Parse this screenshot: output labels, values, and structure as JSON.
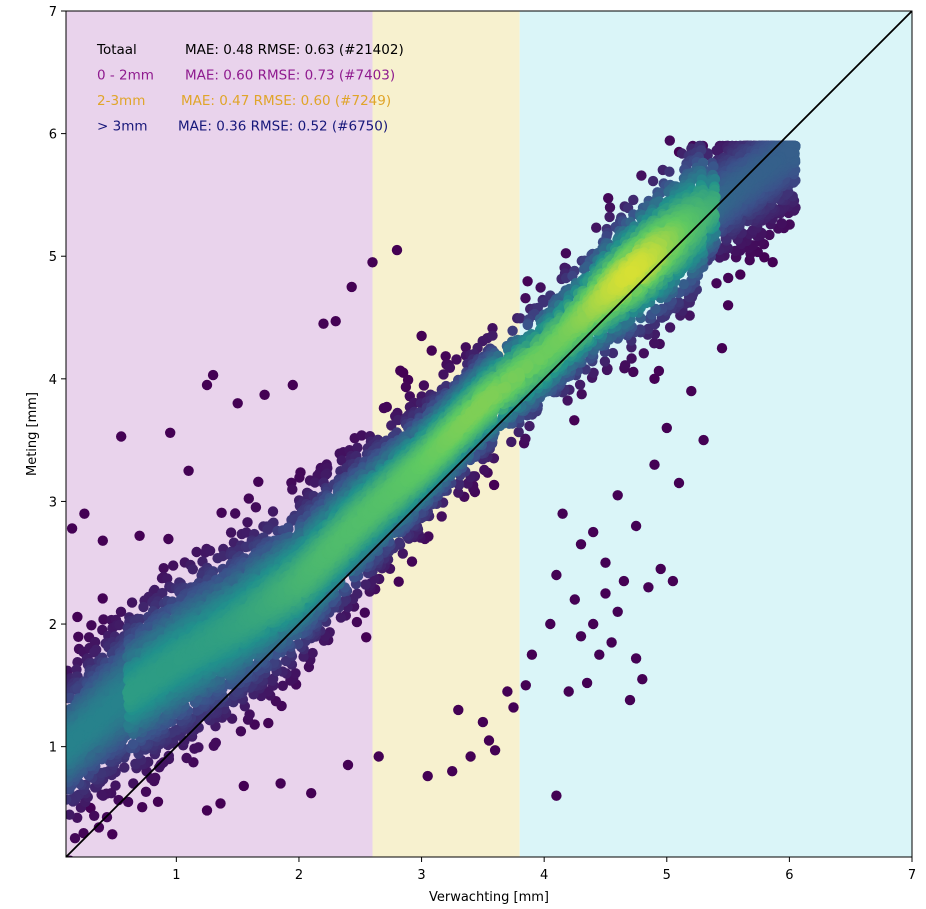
{
  "chart_data": {
    "type": "scatter",
    "title": "",
    "xlabel": "Verwachting [mm]",
    "ylabel": "Meting [mm]",
    "xlim": [
      0.1,
      7
    ],
    "ylim": [
      0.1,
      7
    ],
    "x_ticks": [
      1,
      2,
      3,
      4,
      5,
      6,
      7
    ],
    "y_ticks": [
      1,
      2,
      3,
      4,
      5,
      6,
      7
    ],
    "grid": false,
    "colormap": "viridis",
    "regions": [
      {
        "from": 0.1,
        "to": 2.6,
        "color": "#e9d3ec"
      },
      {
        "from": 2.6,
        "to": 3.8,
        "color": "#f7f1cf"
      },
      {
        "from": 3.8,
        "to": 7.0,
        "color": "#daf5f8"
      }
    ],
    "reference_line": {
      "from": [
        0.1,
        0.1
      ],
      "to": [
        7,
        7
      ],
      "color": "#000000"
    },
    "stats": [
      {
        "group": "Totaal",
        "metrics": "MAE:  0.48 RMSE:  0.63 (#21402)",
        "color": "#000000"
      },
      {
        "group": "0 - 2mm",
        "metrics": "MAE:  0.60 RMSE:  0.73 (#7403)",
        "color": "#8f1b8f"
      },
      {
        "group": "2-3mm",
        "metrics": "MAE:  0.47 RMSE:  0.60 (#7249)",
        "color": "#e0a52a"
      },
      {
        "group": "> 3mm",
        "metrics": "MAE:  0.36 RMSE:  0.52 (#6750)",
        "color": "#17177a"
      }
    ],
    "ridge": {
      "x": [
        0.1,
        0.5,
        1.0,
        1.5,
        2.0,
        2.5,
        3.0,
        3.5,
        4.0,
        4.5,
        5.0,
        5.5,
        6.0
      ],
      "y": [
        1.0,
        1.35,
        1.7,
        2.0,
        2.35,
        2.85,
        3.3,
        3.8,
        4.2,
        4.7,
        5.1,
        5.5,
        5.85
      ]
    },
    "outliers": [
      [
        0.55,
        3.53
      ],
      [
        0.95,
        3.56
      ],
      [
        1.3,
        4.03
      ],
      [
        1.25,
        3.95
      ],
      [
        1.5,
        3.8
      ],
      [
        1.72,
        3.87
      ],
      [
        1.95,
        3.95
      ],
      [
        2.2,
        4.45
      ],
      [
        2.3,
        4.47
      ],
      [
        2.43,
        4.75
      ],
      [
        2.85,
        4.05
      ],
      [
        3.0,
        4.35
      ],
      [
        2.8,
        5.05
      ],
      [
        2.6,
        4.95
      ],
      [
        0.15,
        2.78
      ],
      [
        0.25,
        2.9
      ],
      [
        0.4,
        2.68
      ],
      [
        0.7,
        2.72
      ],
      [
        1.1,
        3.25
      ],
      [
        0.1,
        1.55
      ],
      [
        0.35,
        1.3
      ],
      [
        5.1,
        5.85
      ],
      [
        4.1,
        0.6
      ],
      [
        5.05,
        2.35
      ],
      [
        4.95,
        2.45
      ],
      [
        4.85,
        2.3
      ],
      [
        4.8,
        1.55
      ],
      [
        4.75,
        1.72
      ],
      [
        4.7,
        1.38
      ],
      [
        4.35,
        1.52
      ],
      [
        4.2,
        1.45
      ],
      [
        4.45,
        1.75
      ],
      [
        4.6,
        2.1
      ],
      [
        4.55,
        1.85
      ],
      [
        4.65,
        2.35
      ],
      [
        4.5,
        2.5
      ],
      [
        3.6,
        0.97
      ],
      [
        3.25,
        0.8
      ],
      [
        3.05,
        0.76
      ],
      [
        3.5,
        1.2
      ],
      [
        3.7,
        1.45
      ],
      [
        3.9,
        1.75
      ],
      [
        4.05,
        2.0
      ],
      [
        4.1,
        2.4
      ],
      [
        4.3,
        2.65
      ],
      [
        4.15,
        2.9
      ],
      [
        5.3,
        3.5
      ],
      [
        5.2,
        3.9
      ],
      [
        5.45,
        4.25
      ],
      [
        5.6,
        4.85
      ],
      [
        5.8,
        5.5
      ],
      [
        6.0,
        5.9
      ],
      [
        5.95,
        5.55
      ],
      [
        5.1,
        3.15
      ],
      [
        4.9,
        3.3
      ],
      [
        4.75,
        2.8
      ],
      [
        4.6,
        3.05
      ],
      [
        4.4,
        2.75
      ],
      [
        2.1,
        0.62
      ],
      [
        1.85,
        0.7
      ],
      [
        1.25,
        0.48
      ],
      [
        0.85,
        0.55
      ],
      [
        1.55,
        0.68
      ],
      [
        2.4,
        0.85
      ],
      [
        2.65,
        0.92
      ],
      [
        0.3,
        0.5
      ],
      [
        3.4,
        0.92
      ],
      [
        3.3,
        1.3
      ],
      [
        3.55,
        1.05
      ],
      [
        3.75,
        1.32
      ],
      [
        3.85,
        1.5
      ],
      [
        4.3,
        1.9
      ],
      [
        4.5,
        2.25
      ],
      [
        4.4,
        2.0
      ],
      [
        4.25,
        2.2
      ],
      [
        5.0,
        3.6
      ],
      [
        5.5,
        4.6
      ],
      [
        4.9,
        4.0
      ]
    ]
  }
}
